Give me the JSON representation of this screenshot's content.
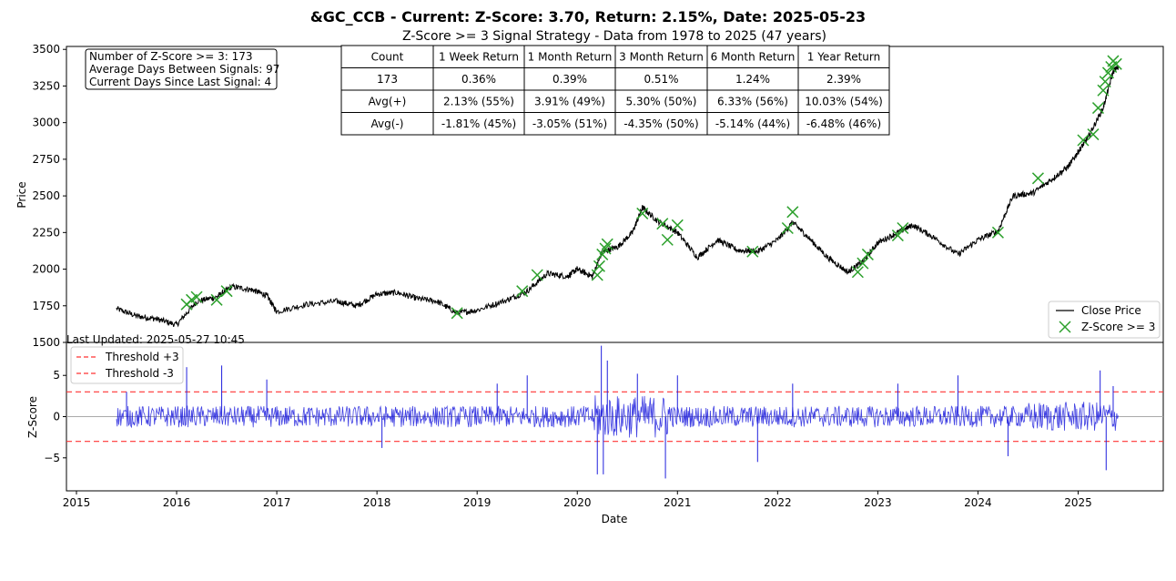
{
  "title": "&GC_CCB - Current: Z-Score: 3.70, Return: 2.15%, Date: 2025-05-23",
  "subtitle": "Z-Score >= 3 Signal Strategy - Data from 1978 to 2025 (47 years)",
  "info_box": {
    "line1": "Number of Z-Score >= 3: 173",
    "line2": "Average Days Between Signals: 97",
    "line3": "Current Days Since Last Signal: 4"
  },
  "last_updated": "Last Updated: 2025-05-27 10:45",
  "stats_table": {
    "header": [
      "Count",
      "1 Week Return",
      "1 Month Return",
      "3 Month Return",
      "6 Month Return",
      "1 Year Return"
    ],
    "rows": [
      [
        "173",
        "0.36%",
        "0.39%",
        "0.51%",
        "1.24%",
        "2.39%"
      ],
      [
        "Avg(+)",
        "2.13% (55%)",
        "3.91% (49%)",
        "5.30% (50%)",
        "6.33% (56%)",
        "10.03% (54%)"
      ],
      [
        "Avg(-)",
        "-1.81% (45%)",
        "-3.05% (51%)",
        "-4.35% (50%)",
        "-5.14% (44%)",
        "-6.48% (46%)"
      ]
    ]
  },
  "chart_data": [
    {
      "type": "line",
      "ylabel": "Price",
      "xlim": [
        2014.9,
        2025.85
      ],
      "ylim": [
        1500,
        3520
      ],
      "yticks": [
        1500,
        1750,
        2000,
        2250,
        2500,
        2750,
        3000,
        3250,
        3500
      ],
      "series": [
        {
          "name": "Close Price",
          "color": "#000000",
          "x": [
            2015.4,
            2015.6,
            2015.8,
            2016.0,
            2016.2,
            2016.4,
            2016.55,
            2016.75,
            2016.9,
            2017.0,
            2017.3,
            2017.6,
            2017.8,
            2018.0,
            2018.2,
            2018.4,
            2018.6,
            2018.8,
            2019.0,
            2019.3,
            2019.5,
            2019.7,
            2019.9,
            2020.0,
            2020.15,
            2020.25,
            2020.4,
            2020.55,
            2020.65,
            2020.8,
            2021.0,
            2021.2,
            2021.4,
            2021.6,
            2021.8,
            2022.0,
            2022.15,
            2022.3,
            2022.5,
            2022.7,
            2022.85,
            2023.0,
            2023.2,
            2023.35,
            2023.55,
            2023.8,
            2024.0,
            2024.2,
            2024.35,
            2024.55,
            2024.75,
            2024.9,
            2025.0,
            2025.1,
            2025.25,
            2025.35,
            2025.4
          ],
          "y": [
            1730,
            1680,
            1660,
            1620,
            1780,
            1810,
            1880,
            1860,
            1820,
            1710,
            1760,
            1780,
            1750,
            1830,
            1840,
            1800,
            1780,
            1700,
            1720,
            1790,
            1850,
            1970,
            1950,
            2000,
            1950,
            2120,
            2150,
            2250,
            2420,
            2330,
            2250,
            2080,
            2200,
            2130,
            2120,
            2200,
            2320,
            2220,
            2080,
            1980,
            2050,
            2180,
            2250,
            2300,
            2220,
            2100,
            2200,
            2260,
            2500,
            2520,
            2620,
            2700,
            2800,
            2900,
            3100,
            3350,
            3380
          ]
        },
        {
          "name": "Z-Score >= 3",
          "color": "#2ca02c",
          "x": [
            2016.1,
            2016.15,
            2016.2,
            2016.4,
            2016.5,
            2018.8,
            2019.45,
            2019.6,
            2020.2,
            2020.22,
            2020.25,
            2020.28,
            2020.3,
            2020.65,
            2020.85,
            2020.9,
            2021.0,
            2021.75,
            2022.1,
            2022.15,
            2022.8,
            2022.85,
            2022.9,
            2023.2,
            2023.25,
            2024.2,
            2024.6,
            2025.05,
            2025.15,
            2025.2,
            2025.25,
            2025.27,
            2025.3,
            2025.33,
            2025.35,
            2025.38
          ],
          "y": [
            1760,
            1790,
            1810,
            1790,
            1850,
            1700,
            1850,
            1960,
            1960,
            2020,
            2100,
            2140,
            2170,
            2380,
            2310,
            2200,
            2300,
            2120,
            2280,
            2390,
            1980,
            2040,
            2100,
            2230,
            2280,
            2250,
            2620,
            2880,
            2920,
            3100,
            3220,
            3280,
            3340,
            3380,
            3420,
            3400
          ]
        }
      ],
      "legend": "lower-right"
    },
    {
      "type": "line",
      "xlabel": "Date",
      "ylabel": "Z-Score",
      "xlim": [
        2014.9,
        2025.85
      ],
      "ylim": [
        -9,
        9
      ],
      "yticks": [
        -5,
        0,
        5
      ],
      "xticks": [
        "2015",
        "2016",
        "2017",
        "2018",
        "2019",
        "2020",
        "2021",
        "2022",
        "2023",
        "2024",
        "2025"
      ],
      "series": [
        {
          "name": "Z-Score",
          "color": "#1f1fdd"
        },
        {
          "name": "Threshold +3",
          "color": "#ff3333",
          "value": 3
        },
        {
          "name": "Threshold -3",
          "color": "#ff3333",
          "value": -3
        }
      ],
      "spikes": {
        "x": [
          2015.5,
          2016.1,
          2016.45,
          2016.9,
          2018.05,
          2019.2,
          2019.5,
          2020.2,
          2020.24,
          2020.26,
          2020.3,
          2020.6,
          2020.88,
          2021.0,
          2021.8,
          2022.15,
          2023.2,
          2023.8,
          2024.3,
          2025.22,
          2025.28,
          2025.35
        ],
        "y": [
          3.0,
          6.0,
          6.2,
          4.5,
          -3.8,
          4.0,
          5.0,
          -7.0,
          8.6,
          -7.0,
          6.8,
          5.2,
          -7.5,
          5.0,
          -5.5,
          4.0,
          4.0,
          5.0,
          -4.8,
          5.6,
          -6.5,
          3.7
        ]
      },
      "legend": "top-left"
    }
  ]
}
